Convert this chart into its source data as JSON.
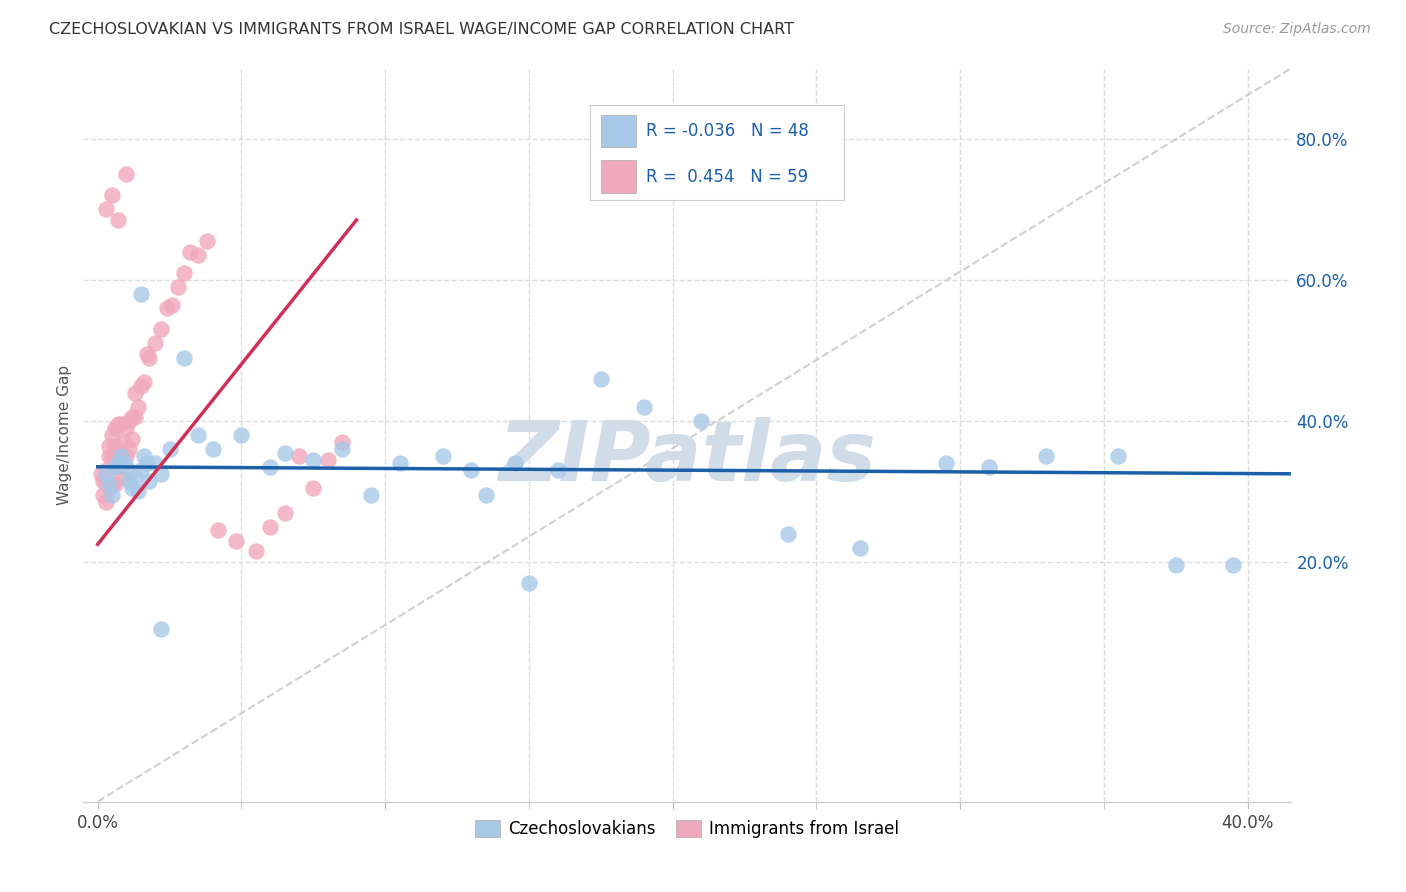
{
  "title": "CZECHOSLOVAKIAN VS IMMIGRANTS FROM ISRAEL WAGE/INCOME GAP CORRELATION CHART",
  "source": "Source: ZipAtlas.com",
  "xlabel_vals": [
    0.0,
    0.1,
    0.2,
    0.3,
    0.4
  ],
  "xlabel_ticks_show": [
    "0.0%",
    "",
    "",
    "",
    "40.0%"
  ],
  "xlabel_minor": [
    0.05,
    0.1,
    0.15,
    0.2,
    0.25,
    0.3,
    0.35,
    0.4
  ],
  "ylabel_vals": [
    0.2,
    0.4,
    0.6,
    0.8
  ],
  "ylabel_ticks": [
    "20.0%",
    "40.0%",
    "60.0%",
    "80.0%"
  ],
  "xlim": [
    -0.005,
    0.415
  ],
  "ylim": [
    -0.14,
    0.9
  ],
  "blue_R": -0.036,
  "blue_N": 48,
  "pink_R": 0.454,
  "pink_N": 59,
  "blue_label": "Czechoslovakians",
  "pink_label": "Immigrants from Israel",
  "blue_color": "#a8c8e8",
  "pink_color": "#f0a8bc",
  "blue_line_color": "#1a5fa8",
  "pink_line_color": "#d03055",
  "diag_color": "#c8c8cc",
  "legend_R_color": "#1a5fa8",
  "watermark": "ZIPatlas",
  "watermark_color": "#d0dce8",
  "background_color": "#ffffff",
  "grid_color": "#dcdce4",
  "blue_x": [
    0.003,
    0.004,
    0.005,
    0.006,
    0.007,
    0.008,
    0.009,
    0.01,
    0.011,
    0.012,
    0.013,
    0.014,
    0.015,
    0.016,
    0.017,
    0.018,
    0.02,
    0.022,
    0.025,
    0.03,
    0.035,
    0.04,
    0.05,
    0.06,
    0.065,
    0.075,
    0.085,
    0.095,
    0.105,
    0.12,
    0.13,
    0.135,
    0.145,
    0.15,
    0.16,
    0.175,
    0.19,
    0.21,
    0.24,
    0.265,
    0.295,
    0.31,
    0.33,
    0.355,
    0.375,
    0.395,
    0.015,
    0.022
  ],
  "blue_y": [
    0.325,
    0.31,
    0.295,
    0.335,
    0.34,
    0.35,
    0.34,
    0.335,
    0.315,
    0.305,
    0.32,
    0.3,
    0.33,
    0.35,
    0.34,
    0.315,
    0.34,
    0.325,
    0.36,
    0.49,
    0.38,
    0.36,
    0.38,
    0.335,
    0.355,
    0.345,
    0.36,
    0.295,
    0.34,
    0.35,
    0.33,
    0.295,
    0.34,
    0.17,
    0.33,
    0.46,
    0.42,
    0.4,
    0.24,
    0.22,
    0.34,
    0.335,
    0.35,
    0.35,
    0.195,
    0.195,
    0.58,
    0.105
  ],
  "pink_x": [
    0.001,
    0.002,
    0.002,
    0.003,
    0.003,
    0.003,
    0.004,
    0.004,
    0.004,
    0.005,
    0.005,
    0.005,
    0.006,
    0.006,
    0.006,
    0.006,
    0.007,
    0.007,
    0.007,
    0.008,
    0.008,
    0.008,
    0.009,
    0.009,
    0.01,
    0.01,
    0.011,
    0.011,
    0.012,
    0.012,
    0.013,
    0.013,
    0.014,
    0.015,
    0.016,
    0.017,
    0.018,
    0.02,
    0.022,
    0.024,
    0.026,
    0.028,
    0.03,
    0.032,
    0.035,
    0.038,
    0.042,
    0.048,
    0.055,
    0.06,
    0.065,
    0.07,
    0.075,
    0.08,
    0.085,
    0.003,
    0.005,
    0.007,
    0.01
  ],
  "pink_y": [
    0.325,
    0.295,
    0.315,
    0.285,
    0.31,
    0.33,
    0.305,
    0.35,
    0.365,
    0.31,
    0.35,
    0.38,
    0.31,
    0.345,
    0.365,
    0.39,
    0.335,
    0.355,
    0.395,
    0.32,
    0.355,
    0.395,
    0.34,
    0.37,
    0.35,
    0.39,
    0.36,
    0.4,
    0.375,
    0.405,
    0.405,
    0.44,
    0.42,
    0.45,
    0.455,
    0.495,
    0.49,
    0.51,
    0.53,
    0.56,
    0.565,
    0.59,
    0.61,
    0.64,
    0.635,
    0.655,
    0.245,
    0.23,
    0.215,
    0.25,
    0.27,
    0.35,
    0.305,
    0.345,
    0.37,
    0.7,
    0.72,
    0.685,
    0.75
  ],
  "pink_line_x0": 0.0,
  "pink_line_x1": 0.09,
  "blue_line_x0": 0.0,
  "blue_line_x1": 0.415
}
